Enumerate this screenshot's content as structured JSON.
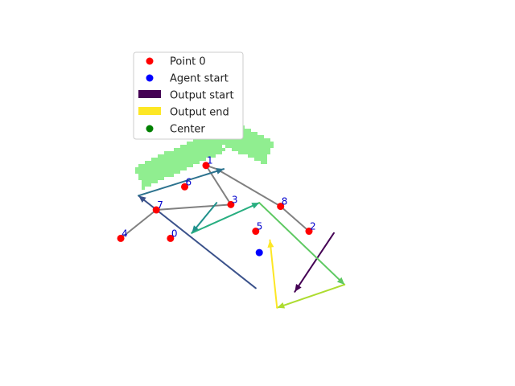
{
  "chart_data": {
    "type": "scatter",
    "title": "",
    "xlabel": "",
    "ylabel": "",
    "axes_visible": false,
    "grid": false,
    "legend_placement": "upper-left",
    "legend": [
      {
        "label": "Point 0",
        "kind": "marker",
        "color": "#ff0000"
      },
      {
        "label": "Agent start",
        "kind": "marker",
        "color": "#0000ff"
      },
      {
        "label": "Output start",
        "kind": "patch",
        "color": "#440154"
      },
      {
        "label": "Output end",
        "kind": "patch",
        "color": "#fde725"
      },
      {
        "label": "Center",
        "kind": "marker",
        "color": "#008000"
      }
    ],
    "region": {
      "color": "#90ee90",
      "bar_1": {
        "from": [
          -1.8,
          3.8
        ],
        "to": [
          0.6,
          1.6
        ],
        "half_width": 0.35
      },
      "bar_2": {
        "from": [
          -0.8,
          2.3
        ],
        "to": [
          -3.1,
          0.2
        ],
        "half_width": 0.33
      }
    },
    "center": {
      "x": -0.6,
      "y": 3.1,
      "color": "#008000"
    },
    "agent_start": {
      "x": 0.3,
      "y": -4.0,
      "color": "#0000ff"
    },
    "points": [
      {
        "label": "0",
        "x": -2.2,
        "y": -3.2
      },
      {
        "label": "1",
        "x": -1.2,
        "y": 0.9
      },
      {
        "label": "2",
        "x": 1.7,
        "y": -2.8
      },
      {
        "label": "3",
        "x": -0.5,
        "y": -1.3
      },
      {
        "label": "4",
        "x": -3.6,
        "y": -3.2
      },
      {
        "label": "5",
        "x": 0.2,
        "y": -2.8
      },
      {
        "label": "6",
        "x": -1.8,
        "y": -0.3
      },
      {
        "label": "7",
        "x": -2.6,
        "y": -1.6
      },
      {
        "label": "8",
        "x": 0.9,
        "y": -1.4
      }
    ],
    "point_color": "#ff0000",
    "label_color": "#0000cd",
    "connector_color": "#808080",
    "connector_path": [
      [
        -3.6,
        -3.2
      ],
      [
        -2.6,
        -1.6
      ],
      [
        -0.5,
        -1.3
      ],
      [
        -1.2,
        0.9
      ],
      [
        -0.9,
        0.7
      ],
      [
        0.9,
        -1.4
      ],
      [
        1.7,
        -2.8
      ]
    ],
    "output_segments": [
      {
        "from": [
          2.4,
          -2.9
        ],
        "to": [
          1.3,
          -6.2
        ],
        "color": "#440154"
      },
      {
        "from": [
          0.2,
          -6.0
        ],
        "to": [
          -3.1,
          -0.8
        ],
        "color": "#3b528b"
      },
      {
        "from": [
          -3.1,
          -0.8
        ],
        "to": [
          -0.7,
          0.7
        ],
        "color": "#2c728e"
      },
      {
        "from": [
          -0.9,
          -1.2
        ],
        "to": [
          -1.6,
          -2.9
        ],
        "color": "#21918c"
      },
      {
        "from": [
          -1.6,
          -2.9
        ],
        "to": [
          0.3,
          -1.2
        ],
        "color": "#28ae80"
      },
      {
        "from": [
          0.3,
          -1.2
        ],
        "to": [
          2.7,
          -5.8
        ],
        "color": "#5ec962"
      },
      {
        "from": [
          2.7,
          -5.8
        ],
        "to": [
          0.8,
          -7.1
        ],
        "color": "#addc30"
      },
      {
        "from": [
          0.8,
          -7.1
        ],
        "to": [
          0.6,
          -3.3
        ],
        "color": "#fde725"
      }
    ],
    "xlim": [
      -7.0,
      7.5
    ],
    "ylim": [
      -11.5,
      10.2
    ]
  }
}
